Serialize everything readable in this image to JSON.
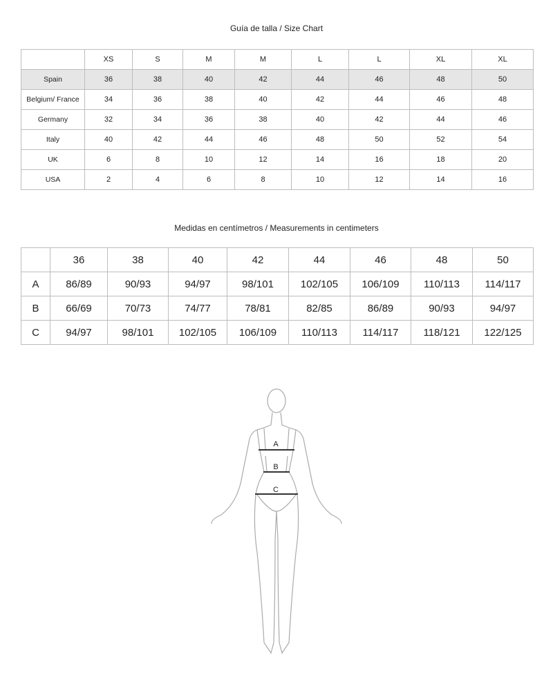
{
  "size_chart": {
    "title": "Guía de talla / Size Chart",
    "headers": [
      "",
      "XS",
      "S",
      "M",
      "M",
      "L",
      "L",
      "XL",
      "XL"
    ],
    "rows": [
      {
        "label": "Spain",
        "values": [
          "36",
          "38",
          "40",
          "42",
          "44",
          "46",
          "48",
          "50"
        ]
      },
      {
        "label": "Belgium/ France",
        "values": [
          "34",
          "36",
          "38",
          "40",
          "42",
          "44",
          "46",
          "48"
        ]
      },
      {
        "label": "Germany",
        "values": [
          "32",
          "34",
          "36",
          "38",
          "40",
          "42",
          "44",
          "46"
        ]
      },
      {
        "label": "Italy",
        "values": [
          "40",
          "42",
          "44",
          "46",
          "48",
          "50",
          "52",
          "54"
        ]
      },
      {
        "label": "UK",
        "values": [
          "6",
          "8",
          "10",
          "12",
          "14",
          "16",
          "18",
          "20"
        ]
      },
      {
        "label": "USA",
        "values": [
          "2",
          "4",
          "6",
          "8",
          "10",
          "12",
          "14",
          "16"
        ]
      }
    ]
  },
  "measurements": {
    "title": "Medidas en centímetros / Measurements in centimeters",
    "headers": [
      "",
      "36",
      "38",
      "40",
      "42",
      "44",
      "46",
      "48",
      "50"
    ],
    "rows": [
      {
        "label": "A",
        "values": [
          "86/89",
          "90/93",
          "94/97",
          "98/101",
          "102/105",
          "106/109",
          "110/113",
          "114/117"
        ]
      },
      {
        "label": "B",
        "values": [
          "66/69",
          "70/73",
          "74/77",
          "78/81",
          "82/85",
          "86/89",
          "90/93",
          "94/97"
        ]
      },
      {
        "label": "C",
        "values": [
          "94/97",
          "98/101",
          "102/105",
          "106/109",
          "110/113",
          "114/117",
          "118/121",
          "122/125"
        ]
      }
    ]
  },
  "figure": {
    "labels": [
      "A",
      "B",
      "C"
    ]
  }
}
